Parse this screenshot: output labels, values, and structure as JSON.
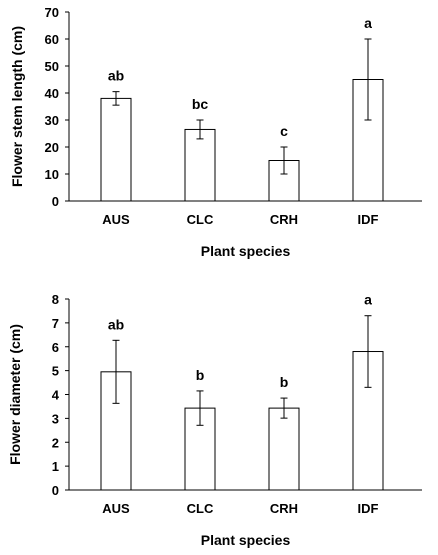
{
  "chart_data": [
    {
      "type": "bar",
      "categories": [
        "AUS",
        "CLC",
        "CRH",
        "IDF"
      ],
      "values": [
        38,
        26.5,
        15,
        45
      ],
      "errors": [
        2.5,
        3.5,
        5,
        15
      ],
      "significance_letters": [
        "ab",
        "bc",
        "c",
        "a"
      ],
      "xlabel": "Plant species",
      "ylabel": "Flower stem length (cm)",
      "ylim": [
        0,
        70
      ],
      "yticks": [
        0,
        10,
        20,
        30,
        40,
        50,
        60,
        70
      ],
      "bar_fill": "#ffffff",
      "bar_stroke": "#000000",
      "grid": false
    },
    {
      "type": "bar",
      "categories": [
        "AUS",
        "CLC",
        "CRH",
        "IDF"
      ],
      "values": [
        4.95,
        3.43,
        3.43,
        5.8
      ],
      "errors": [
        1.32,
        0.72,
        0.42,
        1.5
      ],
      "significance_letters": [
        "ab",
        "b",
        "b",
        "a"
      ],
      "xlabel": "Plant species",
      "ylabel": "Flower diameter (cm)",
      "ylim": [
        0,
        8
      ],
      "yticks": [
        0,
        1,
        2,
        3,
        4,
        5,
        6,
        7,
        8
      ],
      "bar_fill": "#ffffff",
      "bar_stroke": "#000000",
      "grid": false
    }
  ]
}
